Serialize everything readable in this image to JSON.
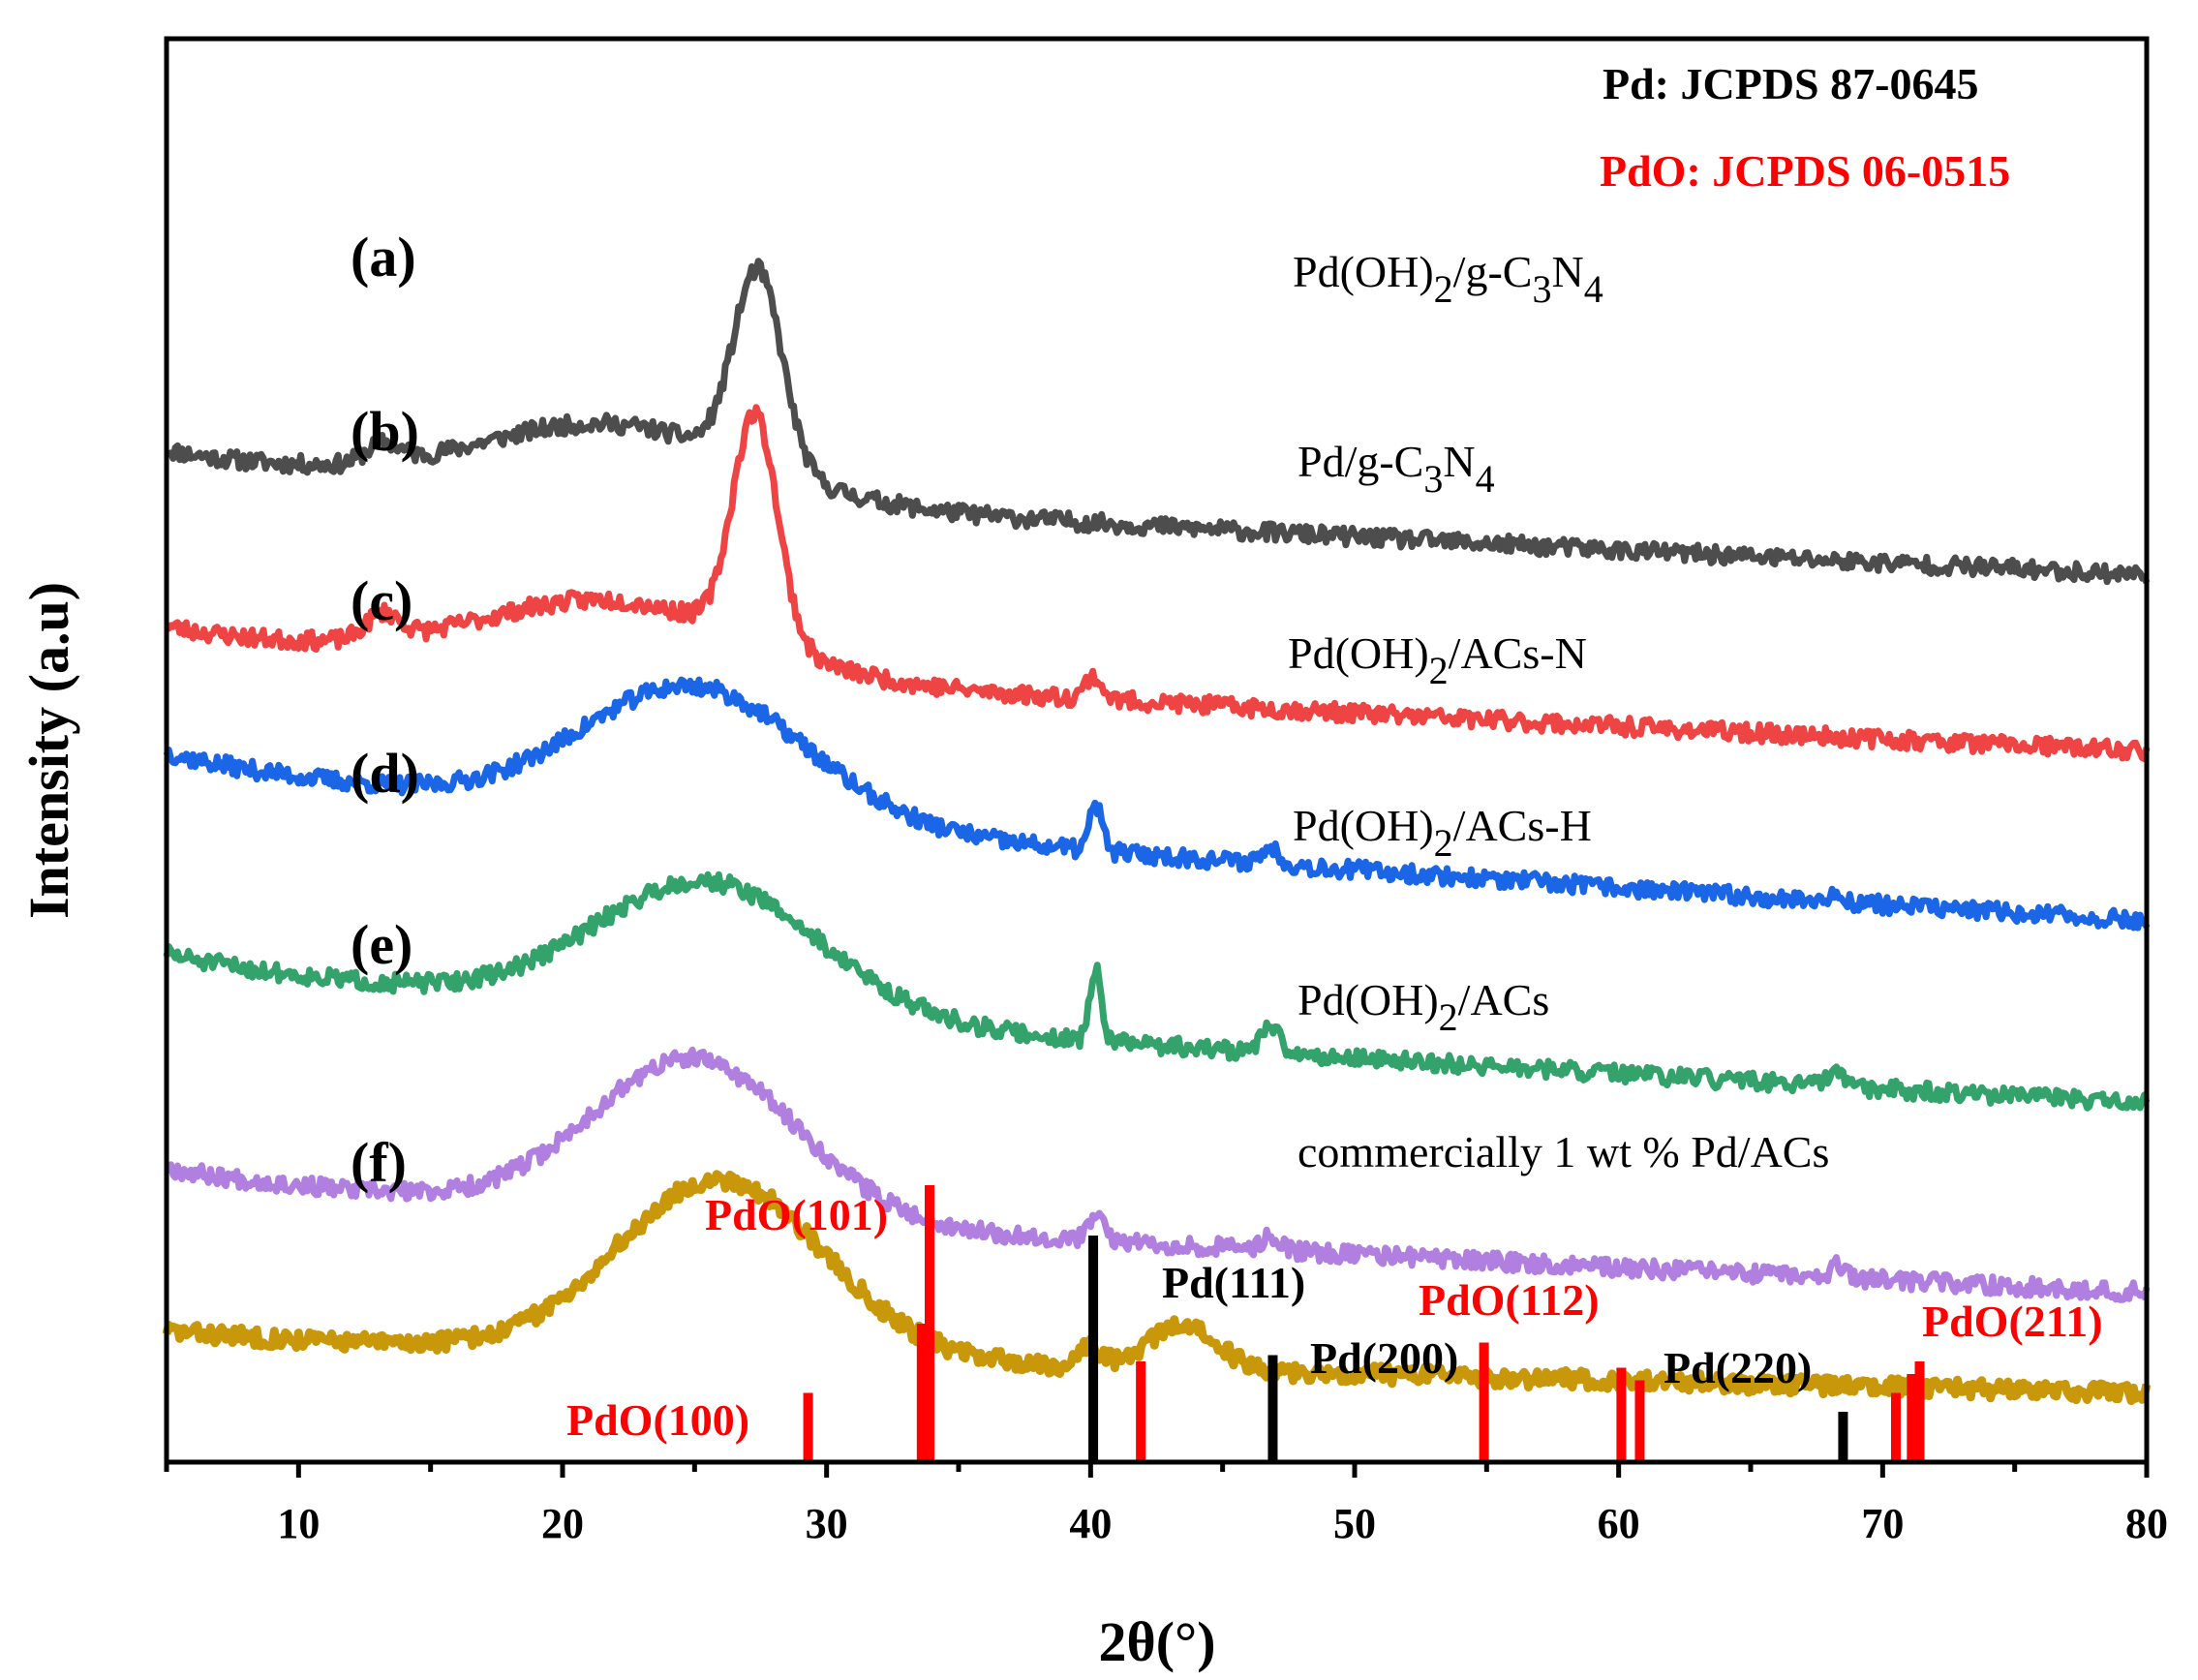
{
  "chart_data": {
    "type": "line",
    "title": "",
    "xlabel": "2θ(°)",
    "ylabel": "Intensity (a.u)",
    "xlim": [
      5,
      80
    ],
    "x_ticks": [
      10,
      20,
      30,
      40,
      50,
      60,
      70,
      80
    ],
    "y_ticks": [],
    "grid": false,
    "references": [
      {
        "name": "Pd: JCPDS 87-0645",
        "color": "#000000"
      },
      {
        "name": "PdO: JCPDS 06-0515",
        "color": "#ff0000"
      }
    ],
    "series": [
      {
        "tag": "(a)",
        "name_main": "Pd(OH)",
        "name_sub": "2",
        "name_rest": "/g-C",
        "name_sub2": "3",
        "name_rest2": "N",
        "name_sub3": "4",
        "label": "Pd(OH)2/g-C3N4",
        "color": "#4d4d4d",
        "offset": 7.6,
        "seed": 11,
        "features": {
          "base_start": 0.45,
          "base_end": -0.55,
          "hump_center": 22,
          "hump_height": 0.55,
          "hump_width": 7,
          "peaks": [
            [
              13.2,
              0.15,
              0.9
            ],
            [
              27.4,
              1.55,
              1.3
            ]
          ]
        }
      },
      {
        "tag": "(b)",
        "name_main": "Pd/g-C",
        "name_sub": "3",
        "name_rest": "N",
        "name_sub2": "4",
        "name_rest2": "",
        "name_sub3": "",
        "label": "Pd/g-C3N4",
        "color": "#ef4444",
        "offset": 6.2,
        "seed": 23,
        "features": {
          "base_start": 0.45,
          "base_end": -0.55,
          "hump_center": 22,
          "hump_height": 0.55,
          "hump_width": 7,
          "peaks": [
            [
              13.2,
              0.2,
              0.9
            ],
            [
              27.3,
              1.8,
              1.2
            ],
            [
              40.1,
              0.18,
              0.45
            ]
          ]
        }
      },
      {
        "tag": "(c)",
        "name_main": "Pd(OH)",
        "name_sub": "2",
        "name_rest": "/ACs-N",
        "name_sub2": "",
        "name_rest2": "",
        "name_sub3": "",
        "label": "Pd(OH)2/ACs-N",
        "color": "#1a66e6",
        "offset": 4.75,
        "seed": 37,
        "features": {
          "base_start": 0.9,
          "base_end": -0.45,
          "hump_center": 25,
          "hump_height": 1.05,
          "hump_width": 6,
          "peaks": [
            [
              40.2,
              0.35,
              0.35
            ],
            [
              46.8,
              0.12,
              0.5
            ],
            [
              68.3,
              0.05,
              0.4
            ]
          ]
        }
      },
      {
        "tag": "(d)",
        "name_main": "Pd(OH)",
        "name_sub": "2",
        "name_rest": "/ACs-H",
        "name_sub2": "",
        "name_rest2": "",
        "name_sub3": "",
        "label": "Pd(OH)2/ACs-H",
        "color": "#33a36b",
        "offset": 3.3,
        "seed": 51,
        "features": {
          "base_start": 0.75,
          "base_end": -0.45,
          "hump_center": 25.5,
          "hump_height": 1.05,
          "hump_width": 6,
          "peaks": [
            [
              40.2,
              0.55,
              0.32
            ],
            [
              46.8,
              0.2,
              0.5
            ],
            [
              68.2,
              0.12,
              0.4
            ]
          ]
        }
      },
      {
        "tag": "(e)",
        "name_main": "Pd(OH)",
        "name_sub": "2",
        "name_rest": "/ACs",
        "name_sub2": "",
        "name_rest2": "",
        "name_sub3": "",
        "label": "Pd(OH)2/ACs",
        "color": "#b07fe0",
        "offset": 1.95,
        "seed": 67,
        "features": {
          "base_start": 0.4,
          "base_end": -0.6,
          "hump_center": 25,
          "hump_height": 1.25,
          "hump_width": 5.5,
          "peaks": [
            [
              40.2,
              0.2,
              0.4
            ],
            [
              46.8,
              0.1,
              0.5
            ],
            [
              68.3,
              0.1,
              0.4
            ]
          ]
        }
      },
      {
        "tag": "(f)",
        "name_main": "commercially 1 wt % Pd/ACs",
        "name_sub": "",
        "name_rest": "",
        "name_sub2": "",
        "name_rest2": "",
        "name_sub3": "",
        "label": "commercially 1 wt % Pd/ACs",
        "color": "#c9980a",
        "offset": 0.95,
        "seed": 83,
        "features": {
          "base_start": 0.1,
          "base_end": -0.4,
          "hump_center": 26,
          "hump_height": 1.4,
          "hump_width": 5.5,
          "peaks": [
            [
              40.0,
              0.15,
              0.6
            ],
            [
              43.5,
              0.35,
              1.8
            ]
          ]
        }
      }
    ],
    "reference_lines": [
      {
        "x": 29.3,
        "height": 0.55,
        "color": "#ff0000",
        "label": "PdO(100)"
      },
      {
        "x": 33.6,
        "height": 1.1,
        "color": "#ff0000",
        "label": ""
      },
      {
        "x": 33.9,
        "height": 2.2,
        "color": "#ff0000",
        "label": "PdO(101)"
      },
      {
        "x": 40.1,
        "height": 1.8,
        "color": "#000000",
        "label": ""
      },
      {
        "x": 41.9,
        "height": 0.8,
        "color": "#ff0000",
        "label": ""
      },
      {
        "x": 46.9,
        "height": 0.85,
        "color": "#000000",
        "label": ""
      },
      {
        "x": 54.9,
        "height": 0.95,
        "color": "#ff0000",
        "label": ""
      },
      {
        "x": 60.1,
        "height": 0.75,
        "color": "#ff0000",
        "label": ""
      },
      {
        "x": 60.8,
        "height": 0.65,
        "color": "#ff0000",
        "label": ""
      },
      {
        "x": 68.5,
        "height": 0.4,
        "color": "#000000",
        "label": ""
      },
      {
        "x": 70.5,
        "height": 0.55,
        "color": "#ff0000",
        "label": ""
      },
      {
        "x": 71.1,
        "height": 0.7,
        "color": "#ff0000",
        "label": ""
      },
      {
        "x": 71.4,
        "height": 0.8,
        "color": "#ff0000",
        "label": ""
      }
    ],
    "peak_annotations": [
      {
        "text": "PdO(100)",
        "color": "#ff0000"
      },
      {
        "text": "PdO(101)",
        "color": "#ff0000"
      },
      {
        "text": "Pd(111)",
        "color": "#000000"
      },
      {
        "text": "Pd(200)",
        "color": "#000000"
      },
      {
        "text": "PdO(112)",
        "color": "#ff0000"
      },
      {
        "text": "Pd(220)",
        "color": "#000000"
      },
      {
        "text": "PdO(211)",
        "color": "#ff0000"
      }
    ]
  }
}
